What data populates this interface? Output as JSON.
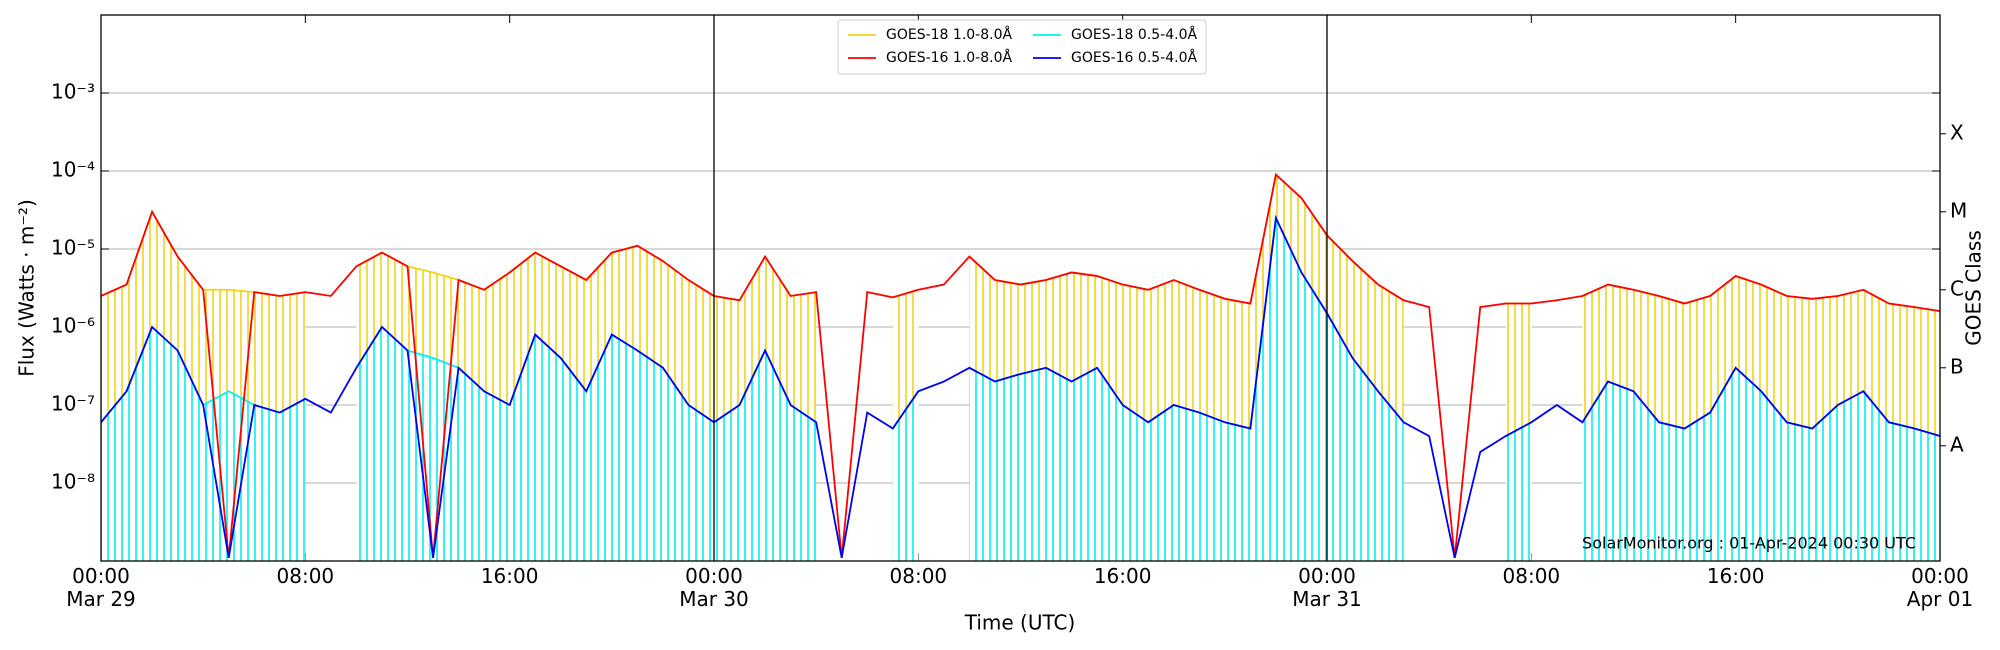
{
  "chart_data": {
    "type": "line",
    "ylabel": "Flux (Watts · m⁻²)",
    "xlabel": "Time (UTC)",
    "y2label": "GOES Class",
    "annotation": "SolarMonitor.org : 01-Apr-2024 00:30 UTC",
    "ylog": true,
    "grid": true,
    "legend": "upper center",
    "hatch": true,
    "xlim": [
      0,
      72
    ],
    "ylim": [
      1e-09,
      0.01
    ],
    "y2lim": [
      1e-09,
      0.01
    ],
    "xticks": [
      {
        "value": 0,
        "label": "00:00\nMar 29"
      },
      {
        "value": 8,
        "label": "08:00"
      },
      {
        "value": 16,
        "label": "16:00"
      },
      {
        "value": 24,
        "label": "00:00\nMar 30"
      },
      {
        "value": 32,
        "label": "08:00"
      },
      {
        "value": 40,
        "label": "16:00"
      },
      {
        "value": 48,
        "label": "00:00\nMar 31"
      },
      {
        "value": 56,
        "label": "08:00"
      },
      {
        "value": 64,
        "label": "16:00"
      },
      {
        "value": 72,
        "label": "00:00\nApr 01"
      }
    ],
    "yticks": [
      {
        "value": 1e-08,
        "label": "10⁻⁸"
      },
      {
        "value": 1e-07,
        "label": "10⁻⁷"
      },
      {
        "value": 1e-06,
        "label": "10⁻⁶"
      },
      {
        "value": 1e-05,
        "label": "10⁻⁵"
      },
      {
        "value": 0.0001,
        "label": "10⁻⁴"
      },
      {
        "value": 0.001,
        "label": "10⁻³"
      }
    ],
    "y2ticks": [
      {
        "value": 3e-08,
        "label": "A"
      },
      {
        "value": 3e-07,
        "label": "B"
      },
      {
        "value": 3e-06,
        "label": "C"
      },
      {
        "value": 3e-05,
        "label": "M"
      },
      {
        "value": 0.0003,
        "label": "X"
      }
    ],
    "vlines": [
      24,
      48
    ],
    "x": [
      0,
      1,
      2,
      3,
      4,
      5,
      6,
      7,
      8,
      9,
      10,
      11,
      12,
      13,
      14,
      15,
      16,
      17,
      18,
      19,
      20,
      21,
      22,
      23,
      24,
      25,
      26,
      27,
      28,
      29,
      30,
      31,
      32,
      33,
      34,
      35,
      36,
      37,
      38,
      39,
      40,
      41,
      42,
      43,
      44,
      45,
      46,
      47,
      48,
      49,
      50,
      51,
      52,
      53,
      54,
      55,
      56,
      57,
      58,
      59,
      60,
      61,
      62,
      63,
      64,
      65,
      66,
      67,
      68,
      69,
      70,
      71,
      72
    ],
    "series": [
      {
        "name": "GOES-18 1.0-8.0Å",
        "color": "#f2d21b",
        "values": [
          2.5e-06,
          3.5e-06,
          3e-05,
          8e-06,
          3e-06,
          3e-06,
          2.8e-06,
          2.5e-06,
          2.8e-06,
          null,
          6e-06,
          9e-06,
          6e-06,
          5e-06,
          4e-06,
          3e-06,
          5e-06,
          9e-06,
          6e-06,
          4e-06,
          9e-06,
          1.1e-05,
          7e-06,
          4e-06,
          2.5e-06,
          2.2e-06,
          8e-06,
          2.5e-06,
          2.8e-06,
          null,
          null,
          2.4e-06,
          3e-06,
          null,
          8e-06,
          4e-06,
          3.5e-06,
          4e-06,
          5e-06,
          4.5e-06,
          3.5e-06,
          3e-06,
          4e-06,
          3e-06,
          2.3e-06,
          2e-06,
          9e-05,
          4.5e-05,
          1.5e-05,
          7e-06,
          3.5e-06,
          2.2e-06,
          null,
          null,
          null,
          2e-06,
          2e-06,
          null,
          2.5e-06,
          3.5e-06,
          3e-06,
          2.5e-06,
          2e-06,
          2.5e-06,
          4.5e-06,
          3.5e-06,
          2.5e-06,
          2.3e-06,
          2.5e-06,
          3e-06,
          2e-06,
          1.8e-06,
          1.6e-06
        ]
      },
      {
        "name": "GOES-16 1.0-8.0Å",
        "color": "#ff0000",
        "values": [
          2.5e-06,
          3.5e-06,
          3e-05,
          8e-06,
          3e-06,
          1.1e-09,
          2.8e-06,
          2.5e-06,
          2.8e-06,
          2.5e-06,
          6e-06,
          9e-06,
          6e-06,
          1.1e-09,
          4e-06,
          3e-06,
          5e-06,
          9e-06,
          6e-06,
          4e-06,
          9e-06,
          1.1e-05,
          7e-06,
          4e-06,
          2.5e-06,
          2.2e-06,
          8e-06,
          2.5e-06,
          2.8e-06,
          1.1e-09,
          2.8e-06,
          2.4e-06,
          3e-06,
          3.5e-06,
          8e-06,
          4e-06,
          3.5e-06,
          4e-06,
          5e-06,
          4.5e-06,
          3.5e-06,
          3e-06,
          4e-06,
          3e-06,
          2.3e-06,
          2e-06,
          9e-05,
          4.5e-05,
          1.5e-05,
          7e-06,
          3.5e-06,
          2.2e-06,
          1.8e-06,
          1.1e-09,
          1.8e-06,
          2e-06,
          2e-06,
          2.2e-06,
          2.5e-06,
          3.5e-06,
          3e-06,
          2.5e-06,
          2e-06,
          2.5e-06,
          4.5e-06,
          3.5e-06,
          2.5e-06,
          2.3e-06,
          2.5e-06,
          3e-06,
          2e-06,
          1.8e-06,
          1.6e-06
        ]
      },
      {
        "name": "GOES-18 0.5-4.0Å",
        "color": "#00f0f0",
        "values": [
          6e-08,
          1.5e-07,
          1e-06,
          5e-07,
          1e-07,
          1.5e-07,
          1e-07,
          8e-08,
          1.2e-07,
          null,
          3e-07,
          1e-06,
          5e-07,
          4e-07,
          3e-07,
          1.5e-07,
          1e-07,
          8e-07,
          4e-07,
          1.5e-07,
          8e-07,
          5e-07,
          3e-07,
          1e-07,
          6e-08,
          1e-07,
          5e-07,
          1e-07,
          6e-08,
          null,
          null,
          5e-08,
          1.5e-07,
          null,
          3e-07,
          2e-07,
          2.5e-07,
          3e-07,
          2e-07,
          3e-07,
          1e-07,
          6e-08,
          1e-07,
          8e-08,
          6e-08,
          5e-08,
          2.5e-05,
          5e-06,
          1.5e-06,
          4e-07,
          1.5e-07,
          6e-08,
          null,
          null,
          null,
          4e-08,
          6e-08,
          null,
          6e-08,
          2e-07,
          1.5e-07,
          6e-08,
          5e-08,
          8e-08,
          3e-07,
          1.5e-07,
          6e-08,
          5e-08,
          1e-07,
          1.5e-07,
          6e-08,
          5e-08,
          4e-08
        ]
      },
      {
        "name": "GOES-16 0.5-4.0Å",
        "color": "#0000ee",
        "values": [
          6e-08,
          1.5e-07,
          1e-06,
          5e-07,
          1e-07,
          1.1e-09,
          1e-07,
          8e-08,
          1.2e-07,
          8e-08,
          3e-07,
          1e-06,
          5e-07,
          1.1e-09,
          3e-07,
          1.5e-07,
          1e-07,
          8e-07,
          4e-07,
          1.5e-07,
          8e-07,
          5e-07,
          3e-07,
          1e-07,
          6e-08,
          1e-07,
          5e-07,
          1e-07,
          6e-08,
          1.1e-09,
          8e-08,
          5e-08,
          1.5e-07,
          2e-07,
          3e-07,
          2e-07,
          2.5e-07,
          3e-07,
          2e-07,
          3e-07,
          1e-07,
          6e-08,
          1e-07,
          8e-08,
          6e-08,
          5e-08,
          2.5e-05,
          5e-06,
          1.5e-06,
          4e-07,
          1.5e-07,
          6e-08,
          4e-08,
          1.1e-09,
          2.5e-08,
          4e-08,
          6e-08,
          1e-07,
          6e-08,
          2e-07,
          1.5e-07,
          6e-08,
          5e-08,
          8e-08,
          3e-07,
          1.5e-07,
          6e-08,
          5e-08,
          1e-07,
          1.5e-07,
          6e-08,
          5e-08,
          4e-08
        ]
      }
    ]
  }
}
